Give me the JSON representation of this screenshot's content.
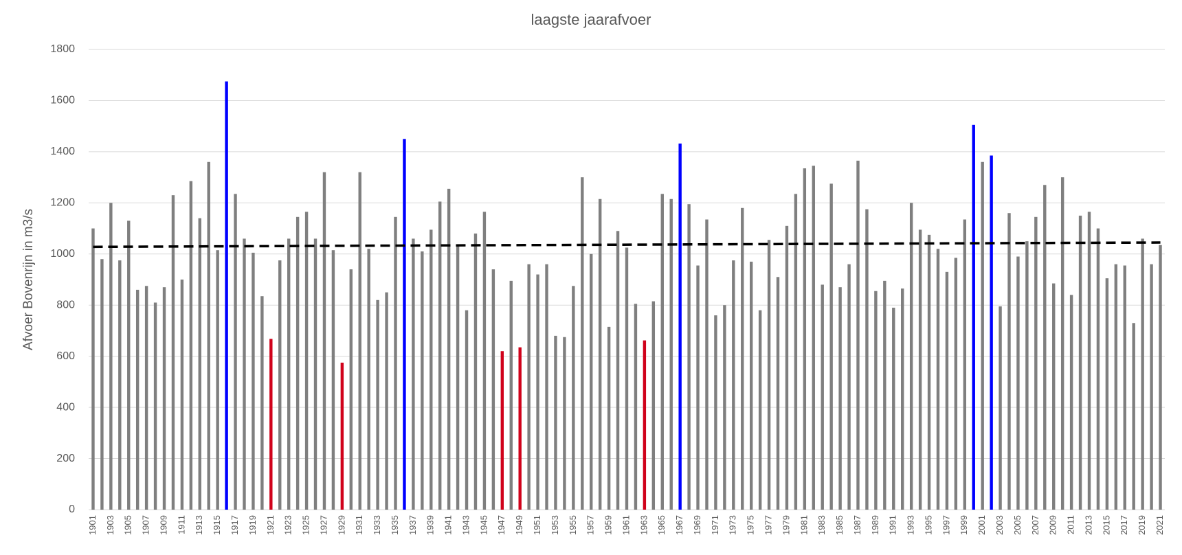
{
  "chart_data": {
    "type": "bar",
    "title": "laagste jaarafvoer",
    "y_label": "Afvoer Bovenrijn in m3/s",
    "categories": [
      "1901",
      null,
      "1903",
      null,
      "1905",
      null,
      "1907",
      null,
      "1909",
      null,
      "1911",
      null,
      "1913",
      null,
      "1915",
      null,
      "1917",
      null,
      "1919",
      null,
      "1921",
      null,
      "1923",
      null,
      "1925",
      null,
      "1927",
      null,
      "1929",
      null,
      "1931",
      null,
      "1933",
      null,
      "1935",
      null,
      "1937",
      null,
      "1939",
      null,
      "1941",
      null,
      "1943",
      null,
      "1945",
      null,
      "1947",
      null,
      "1949",
      null,
      "1951",
      null,
      "1953",
      null,
      "1955",
      null,
      "1957",
      null,
      "1959",
      null,
      "1961",
      null,
      "1963",
      null,
      "1965",
      null,
      "1967",
      null,
      "1969",
      null,
      "1971",
      null,
      "1973",
      null,
      "1975",
      null,
      "1977",
      null,
      "1979",
      null,
      "1981",
      null,
      "1983",
      null,
      "1985",
      null,
      "1987",
      null,
      "1989",
      null,
      "1991",
      null,
      "1993",
      null,
      "1995",
      null,
      "1997",
      null,
      "1999",
      null,
      "2001",
      null,
      "2003",
      null,
      "2005",
      null,
      "2007",
      null,
      "2009",
      null,
      "2011",
      null,
      "2013",
      null,
      "2015",
      null,
      "2017",
      null,
      "2019",
      null,
      "2021"
    ],
    "values": [
      1100,
      980,
      1200,
      975,
      1130,
      860,
      875,
      810,
      870,
      1230,
      900,
      1285,
      1140,
      1360,
      1015,
      1675,
      1235,
      1060,
      1005,
      835,
      668,
      975,
      1060,
      1145,
      1165,
      1060,
      1320,
      1015,
      575,
      940,
      1320,
      1020,
      820,
      850,
      1145,
      1450,
      1060,
      1010,
      1095,
      1205,
      1255,
      1030,
      780,
      1080,
      1165,
      940,
      620,
      895,
      635,
      960,
      920,
      960,
      680,
      675,
      875,
      1300,
      1000,
      1215,
      715,
      1090,
      1025,
      805,
      662,
      815,
      1235,
      1215,
      1432,
      1195,
      955,
      1135,
      760,
      800,
      975,
      1180,
      970,
      780,
      1055,
      910,
      1110,
      1235,
      1335,
      1345,
      880,
      1275,
      870,
      960,
      1365,
      1175,
      855,
      895,
      790,
      865,
      1200,
      1095,
      1075,
      1020,
      930,
      985,
      1135,
      1505,
      1360,
      1385,
      795,
      1160,
      990,
      1050,
      1145,
      1270,
      885,
      1300,
      840,
      1150,
      1165,
      1100,
      905,
      960,
      955,
      730,
      1060,
      960,
      1035
    ],
    "colors": [
      "#7f7f7f",
      "#7f7f7f",
      "#7f7f7f",
      "#7f7f7f",
      "#7f7f7f",
      "#7f7f7f",
      "#7f7f7f",
      "#7f7f7f",
      "#7f7f7f",
      "#7f7f7f",
      "#7f7f7f",
      "#7f7f7f",
      "#7f7f7f",
      "#7f7f7f",
      "#7f7f7f",
      "#0000ff",
      "#7f7f7f",
      "#7f7f7f",
      "#7f7f7f",
      "#7f7f7f",
      "#d0021b",
      "#7f7f7f",
      "#7f7f7f",
      "#7f7f7f",
      "#7f7f7f",
      "#7f7f7f",
      "#7f7f7f",
      "#7f7f7f",
      "#d0021b",
      "#7f7f7f",
      "#7f7f7f",
      "#7f7f7f",
      "#7f7f7f",
      "#7f7f7f",
      "#7f7f7f",
      "#0000ff",
      "#7f7f7f",
      "#7f7f7f",
      "#7f7f7f",
      "#7f7f7f",
      "#7f7f7f",
      "#7f7f7f",
      "#7f7f7f",
      "#7f7f7f",
      "#7f7f7f",
      "#7f7f7f",
      "#d0021b",
      "#7f7f7f",
      "#d0021b",
      "#7f7f7f",
      "#7f7f7f",
      "#7f7f7f",
      "#7f7f7f",
      "#7f7f7f",
      "#7f7f7f",
      "#7f7f7f",
      "#7f7f7f",
      "#7f7f7f",
      "#7f7f7f",
      "#7f7f7f",
      "#7f7f7f",
      "#7f7f7f",
      "#d0021b",
      "#7f7f7f",
      "#7f7f7f",
      "#7f7f7f",
      "#0000ff",
      "#7f7f7f",
      "#7f7f7f",
      "#7f7f7f",
      "#7f7f7f",
      "#7f7f7f",
      "#7f7f7f",
      "#7f7f7f",
      "#7f7f7f",
      "#7f7f7f",
      "#7f7f7f",
      "#7f7f7f",
      "#7f7f7f",
      "#7f7f7f",
      "#7f7f7f",
      "#7f7f7f",
      "#7f7f7f",
      "#7f7f7f",
      "#7f7f7f",
      "#7f7f7f",
      "#7f7f7f",
      "#7f7f7f",
      "#7f7f7f",
      "#7f7f7f",
      "#7f7f7f",
      "#7f7f7f",
      "#7f7f7f",
      "#7f7f7f",
      "#7f7f7f",
      "#7f7f7f",
      "#7f7f7f",
      "#7f7f7f",
      "#7f7f7f",
      "#0000ff",
      "#7f7f7f",
      "#0000ff",
      "#7f7f7f",
      "#7f7f7f",
      "#7f7f7f",
      "#7f7f7f",
      "#7f7f7f",
      "#7f7f7f",
      "#7f7f7f",
      "#7f7f7f",
      "#7f7f7f",
      "#7f7f7f",
      "#7f7f7f",
      "#7f7f7f",
      "#7f7f7f",
      "#7f7f7f",
      "#7f7f7f",
      "#7f7f7f",
      "#7f7f7f",
      "#7f7f7f",
      "#7f7f7f"
    ],
    "trendline": [
      1028,
      1045
    ],
    "trend_color": "#000000",
    "ylim": [
      0,
      1800
    ],
    "yticks": [
      0,
      200,
      400,
      600,
      800,
      1000,
      1200,
      1400,
      1600,
      1800
    ],
    "grid": true
  }
}
